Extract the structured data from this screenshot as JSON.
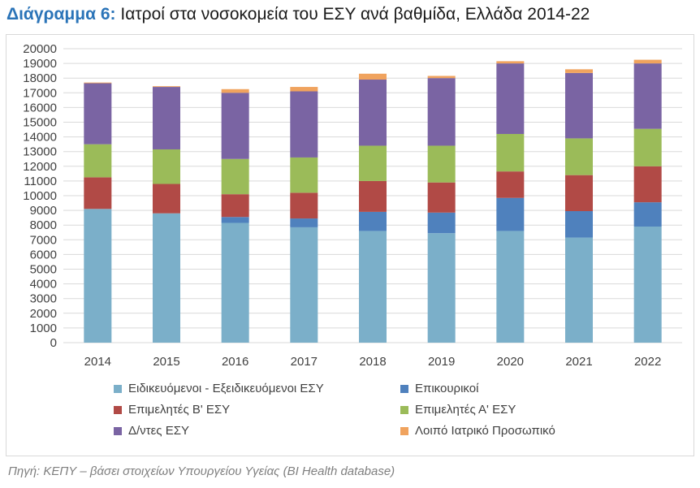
{
  "title": {
    "lead": "Διάγραμμα 6:",
    "text": " Ιατροί στα νοσοκομεία του ΕΣΥ ανά βαθμίδα, Ελλάδα 2014-22"
  },
  "source": "Πηγή: ΚΕΠΥ – βάσει στοιχείων Υπουργείου Υγείας (BI Health database)",
  "chart_data": {
    "type": "bar",
    "stacked": true,
    "title": "Ιατροί στα νοσοκομεία του ΕΣΥ ανά βαθμίδα, Ελλάδα 2014-22",
    "categories": [
      "2014",
      "2015",
      "2016",
      "2017",
      "2018",
      "2019",
      "2020",
      "2021",
      "2022"
    ],
    "ylim": [
      0,
      20000
    ],
    "yticks": [
      0,
      1000,
      2000,
      3000,
      4000,
      5000,
      6000,
      7000,
      8000,
      9000,
      10000,
      11000,
      12000,
      13000,
      14000,
      15000,
      16000,
      17000,
      18000,
      19000,
      20000
    ],
    "grid": true,
    "legend_position": "bottom",
    "series": [
      {
        "name": "Ειδικευόμενοι - Εξειδικευόμενοι ΕΣΥ",
        "color": "#7bafc9",
        "values": [
          9100,
          8800,
          8150,
          7850,
          7600,
          7450,
          7600,
          7150,
          7900
        ]
      },
      {
        "name": "Επικουρικοί",
        "color": "#4f81bd",
        "values": [
          0,
          0,
          400,
          600,
          1300,
          1400,
          2250,
          1800,
          1650
        ]
      },
      {
        "name": "Επιμελητές Β' ΕΣΥ",
        "color": "#b14a46",
        "values": [
          2150,
          2000,
          1550,
          1750,
          2100,
          2050,
          1800,
          2450,
          2450
        ]
      },
      {
        "name": "Επιμελητές Α'  ΕΣΥ",
        "color": "#9bbb59",
        "values": [
          2250,
          2350,
          2400,
          2400,
          2400,
          2500,
          2550,
          2500,
          2550
        ]
      },
      {
        "name": "Δ/ντες ΕΣΥ",
        "color": "#7a64a3",
        "values": [
          4150,
          4250,
          4500,
          4500,
          4500,
          4600,
          4800,
          4450,
          4450
        ]
      },
      {
        "name": "Λοιπό Ιατρικό Προσωπικό",
        "color": "#f0a35e",
        "values": [
          50,
          50,
          250,
          300,
          400,
          150,
          150,
          250,
          250
        ]
      }
    ]
  }
}
